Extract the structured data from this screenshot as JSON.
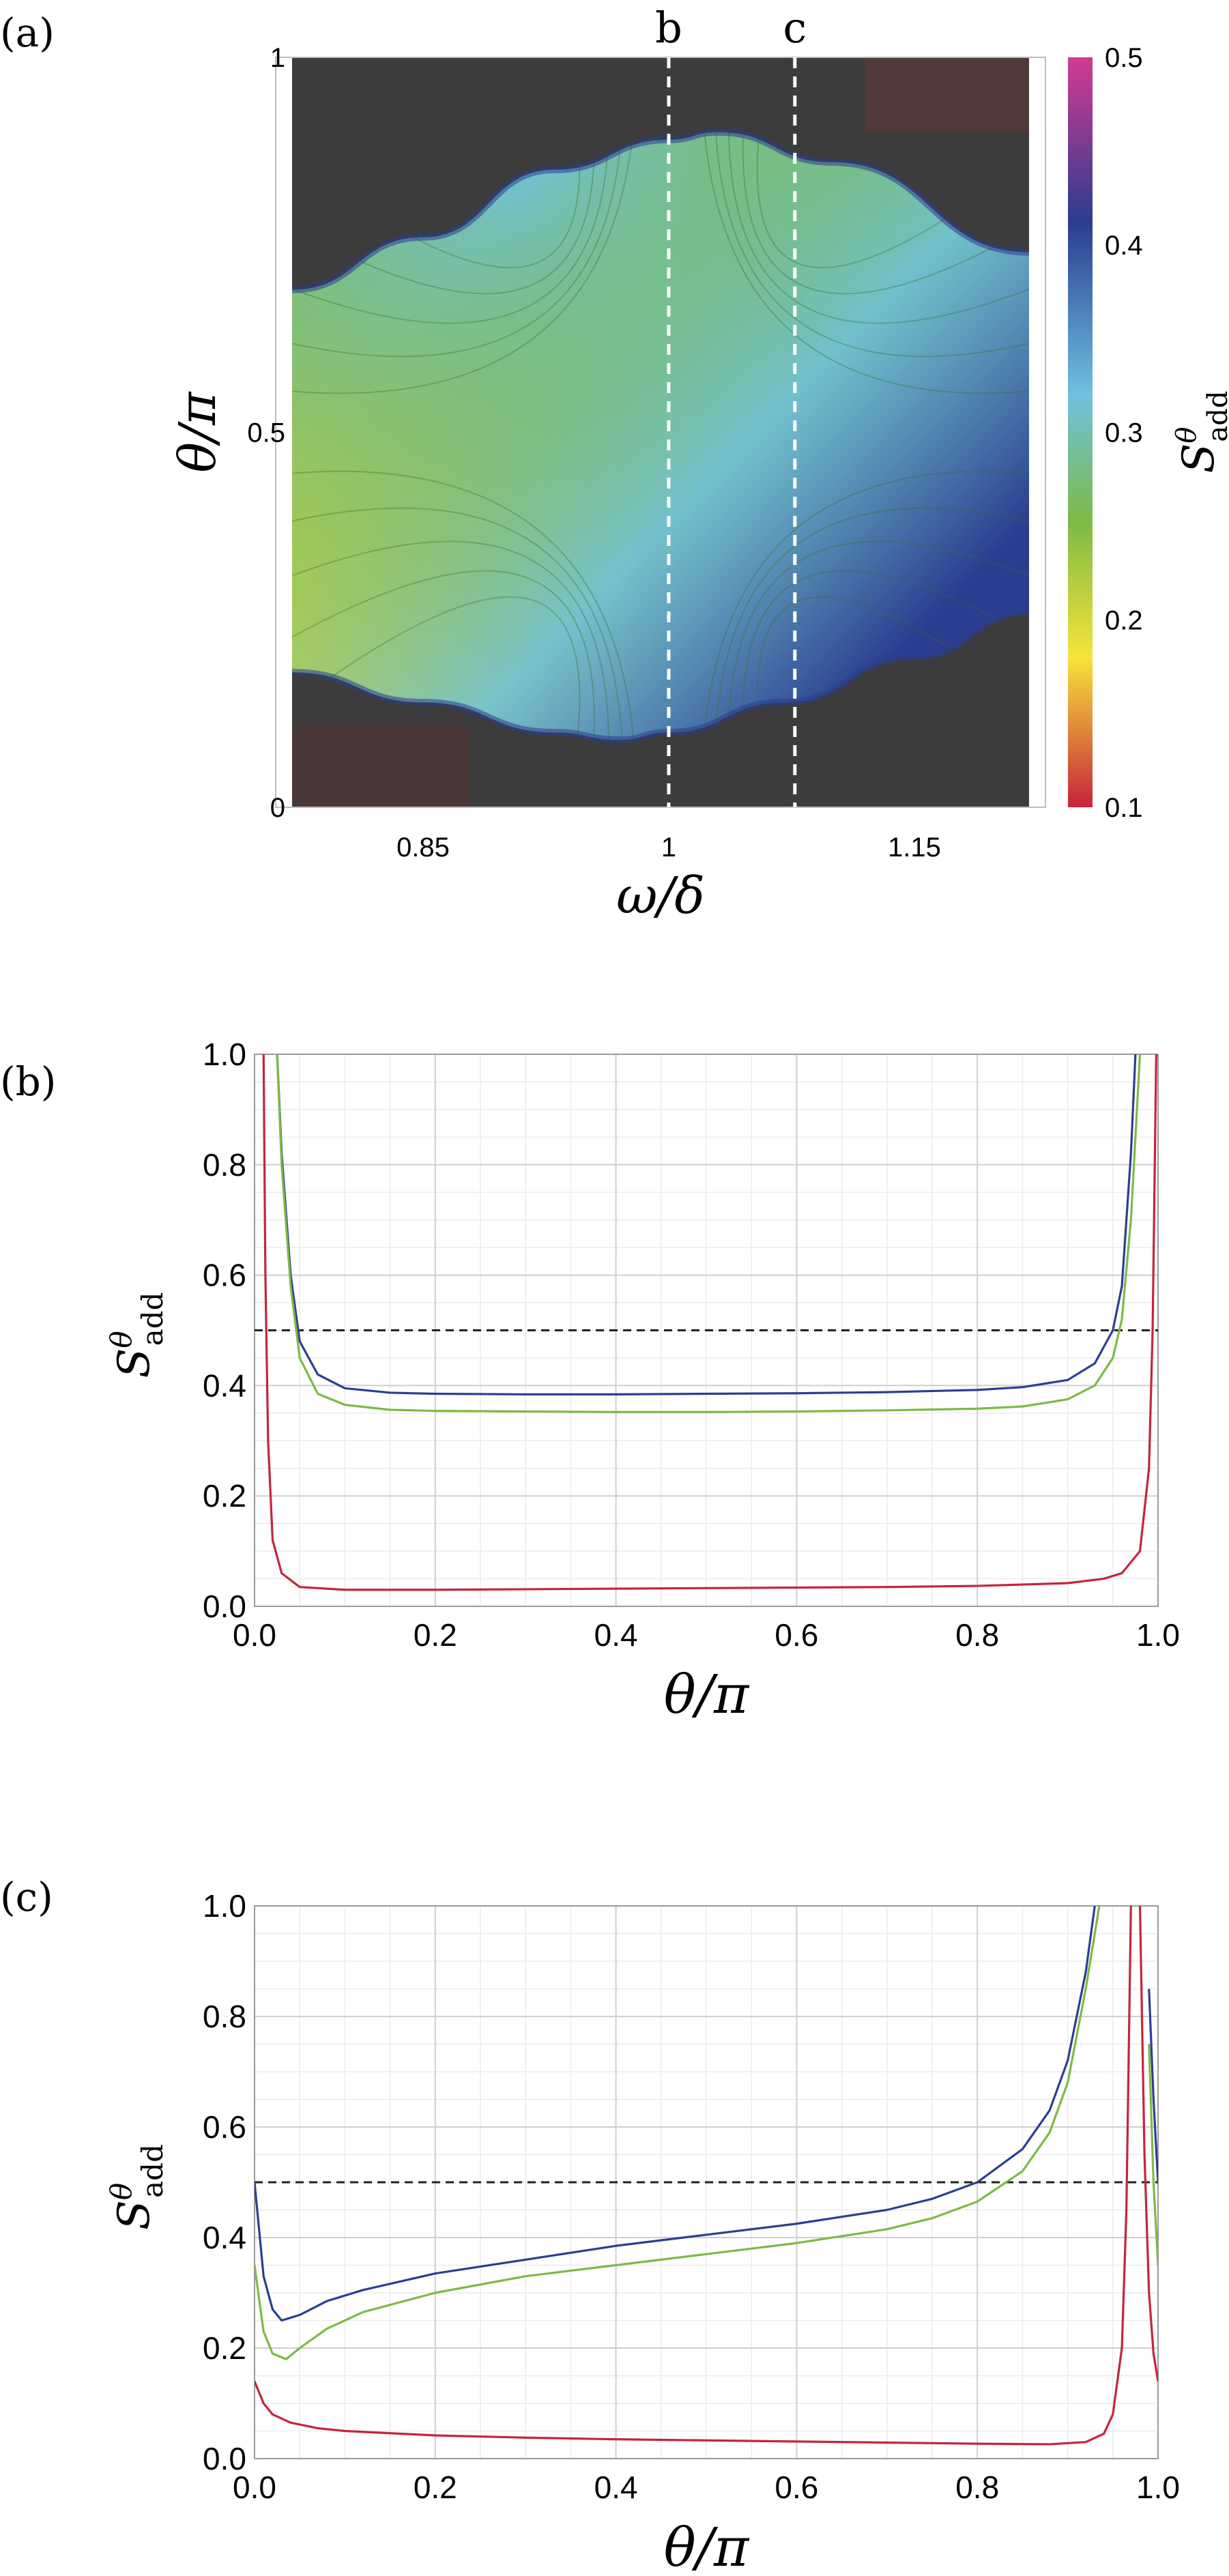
{
  "chart_data": [
    {
      "panel_label": "(a)",
      "type": "heatmap",
      "xlabel": "ω/δ",
      "ylabel": "θ/π",
      "x_ticks": [
        "0.85",
        "1",
        "1.15"
      ],
      "x_tick_values": [
        0.85,
        1.0,
        1.15
      ],
      "y_ticks": [
        "0",
        "0.5",
        "1"
      ],
      "y_tick_values": [
        0,
        0.5,
        1
      ],
      "xlim": [
        0.77,
        1.22
      ],
      "ylim": [
        0,
        1
      ],
      "colorbar": {
        "label": "S^θ_add",
        "label_main": "S",
        "label_sup": "θ",
        "label_sub": "add",
        "range": [
          0.1,
          0.5
        ],
        "ticks": [
          "0.1",
          "0.2",
          "0.3",
          "0.4",
          "0.5"
        ],
        "tick_values": [
          0.1,
          0.2,
          0.3,
          0.4,
          0.5
        ],
        "colors": [
          "#c6243b",
          "#f7e43a",
          "#7dba46",
          "#6fc1e0",
          "#2a3d8f",
          "#d33a92"
        ]
      },
      "cut_lines": [
        {
          "label": "b",
          "x": 1.0
        },
        {
          "label": "c",
          "x": 1.077
        }
      ],
      "boundary": {
        "upper": [
          [
            0.77,
            0.69
          ],
          [
            0.85,
            0.76
          ],
          [
            0.93,
            0.85
          ],
          [
            1.0,
            0.89
          ],
          [
            1.03,
            0.9
          ],
          [
            1.1,
            0.86
          ],
          [
            1.22,
            0.74
          ]
        ],
        "lower": [
          [
            0.77,
            0.18
          ],
          [
            0.85,
            0.14
          ],
          [
            0.93,
            0.1
          ],
          [
            0.97,
            0.09
          ],
          [
            1.0,
            0.1
          ],
          [
            1.07,
            0.14
          ],
          [
            1.15,
            0.2
          ],
          [
            1.22,
            0.26
          ]
        ]
      },
      "grid": false
    },
    {
      "panel_label": "(b)",
      "type": "line",
      "xlabel": "θ/π",
      "ylabel": "S^θ_add",
      "ylabel_main": "S",
      "ylabel_sup": "θ",
      "ylabel_sub": "add",
      "x_ticks": [
        "0.0",
        "0.2",
        "0.4",
        "0.6",
        "0.8",
        "1.0"
      ],
      "x_tick_values": [
        0,
        0.2,
        0.4,
        0.6,
        0.8,
        1.0
      ],
      "y_ticks": [
        "0.0",
        "0.2",
        "0.4",
        "0.6",
        "0.8",
        "1.0"
      ],
      "y_tick_values": [
        0,
        0.2,
        0.4,
        0.6,
        0.8,
        1.0
      ],
      "xlim": [
        0,
        1
      ],
      "ylim": [
        0,
        1
      ],
      "grid": true,
      "reference_line": {
        "y": 0.5,
        "style": "dashed"
      },
      "series": [
        {
          "color": "#2b3f93",
          "x": [
            0.025,
            0.03,
            0.04,
            0.05,
            0.07,
            0.1,
            0.15,
            0.2,
            0.3,
            0.4,
            0.5,
            0.6,
            0.7,
            0.8,
            0.85,
            0.9,
            0.93,
            0.95,
            0.96,
            0.97,
            0.975
          ],
          "y": [
            1.0,
            0.82,
            0.6,
            0.48,
            0.42,
            0.395,
            0.387,
            0.385,
            0.384,
            0.384,
            0.385,
            0.386,
            0.388,
            0.392,
            0.397,
            0.41,
            0.44,
            0.5,
            0.58,
            0.82,
            1.0
          ]
        },
        {
          "color": "#7dba46",
          "x": [
            0.025,
            0.03,
            0.04,
            0.05,
            0.07,
            0.1,
            0.15,
            0.2,
            0.3,
            0.4,
            0.5,
            0.6,
            0.7,
            0.8,
            0.85,
            0.9,
            0.93,
            0.95,
            0.96,
            0.97,
            0.98
          ],
          "y": [
            1.0,
            0.8,
            0.58,
            0.45,
            0.385,
            0.365,
            0.356,
            0.354,
            0.353,
            0.352,
            0.352,
            0.353,
            0.355,
            0.358,
            0.362,
            0.375,
            0.4,
            0.45,
            0.52,
            0.7,
            1.0
          ]
        },
        {
          "color": "#c6243b",
          "x": [
            0.01,
            0.012,
            0.015,
            0.02,
            0.03,
            0.05,
            0.1,
            0.2,
            0.3,
            0.4,
            0.5,
            0.6,
            0.7,
            0.8,
            0.9,
            0.94,
            0.96,
            0.98,
            0.99,
            0.994,
            0.998
          ],
          "y": [
            1.0,
            0.6,
            0.3,
            0.12,
            0.06,
            0.035,
            0.03,
            0.03,
            0.031,
            0.032,
            0.033,
            0.034,
            0.035,
            0.037,
            0.042,
            0.05,
            0.06,
            0.1,
            0.25,
            0.5,
            1.0
          ]
        }
      ]
    },
    {
      "panel_label": "(c)",
      "type": "line",
      "xlabel": "θ/π",
      "ylabel": "S^θ_add",
      "ylabel_main": "S",
      "ylabel_sup": "θ",
      "ylabel_sub": "add",
      "x_ticks": [
        "0.0",
        "0.2",
        "0.4",
        "0.6",
        "0.8",
        "1.0"
      ],
      "x_tick_values": [
        0,
        0.2,
        0.4,
        0.6,
        0.8,
        1.0
      ],
      "y_ticks": [
        "0.0",
        "0.2",
        "0.4",
        "0.6",
        "0.8",
        "1.0"
      ],
      "y_tick_values": [
        0,
        0.2,
        0.4,
        0.6,
        0.8,
        1.0
      ],
      "xlim": [
        0,
        1
      ],
      "ylim": [
        0,
        1
      ],
      "grid": true,
      "reference_line": {
        "y": 0.5,
        "style": "dashed"
      },
      "series": [
        {
          "color": "#2b3f93",
          "x": [
            0.0,
            0.01,
            0.02,
            0.03,
            0.05,
            0.08,
            0.12,
            0.2,
            0.3,
            0.4,
            0.5,
            0.6,
            0.7,
            0.75,
            0.8,
            0.85,
            0.88,
            0.9,
            0.92,
            0.93
          ],
          "y": [
            0.5,
            0.33,
            0.27,
            0.25,
            0.26,
            0.285,
            0.305,
            0.335,
            0.36,
            0.385,
            0.405,
            0.425,
            0.45,
            0.47,
            0.5,
            0.56,
            0.63,
            0.72,
            0.88,
            1.0
          ]
        },
        {
          "color": "#7dba46",
          "x": [
            0.0,
            0.01,
            0.02,
            0.035,
            0.05,
            0.08,
            0.12,
            0.2,
            0.3,
            0.4,
            0.5,
            0.6,
            0.7,
            0.75,
            0.8,
            0.85,
            0.88,
            0.9,
            0.92,
            0.935
          ],
          "y": [
            0.35,
            0.23,
            0.19,
            0.18,
            0.2,
            0.235,
            0.265,
            0.3,
            0.33,
            0.35,
            0.37,
            0.39,
            0.415,
            0.435,
            0.465,
            0.52,
            0.59,
            0.68,
            0.85,
            1.0
          ]
        },
        {
          "color": "#c6243b",
          "x": [
            0.0,
            0.01,
            0.02,
            0.04,
            0.07,
            0.1,
            0.2,
            0.3,
            0.4,
            0.5,
            0.6,
            0.7,
            0.8,
            0.88,
            0.92,
            0.94,
            0.95,
            0.96,
            0.965,
            0.97
          ],
          "y": [
            0.14,
            0.1,
            0.08,
            0.065,
            0.055,
            0.05,
            0.042,
            0.038,
            0.035,
            0.033,
            0.031,
            0.029,
            0.027,
            0.026,
            0.03,
            0.045,
            0.08,
            0.2,
            0.45,
            1.0
          ]
        },
        {
          "color": "#c6243b",
          "x": [
            0.98,
            0.985,
            0.99,
            0.995,
            1.0
          ],
          "y": [
            1.0,
            0.55,
            0.3,
            0.19,
            0.14
          ]
        },
        {
          "color": "#7dba46",
          "x": [
            0.99,
            0.995,
            1.0
          ],
          "y": [
            0.75,
            0.5,
            0.35
          ]
        },
        {
          "color": "#2b3f93",
          "x": [
            0.99,
            0.995,
            1.0
          ],
          "y": [
            0.85,
            0.65,
            0.5
          ]
        }
      ]
    }
  ]
}
